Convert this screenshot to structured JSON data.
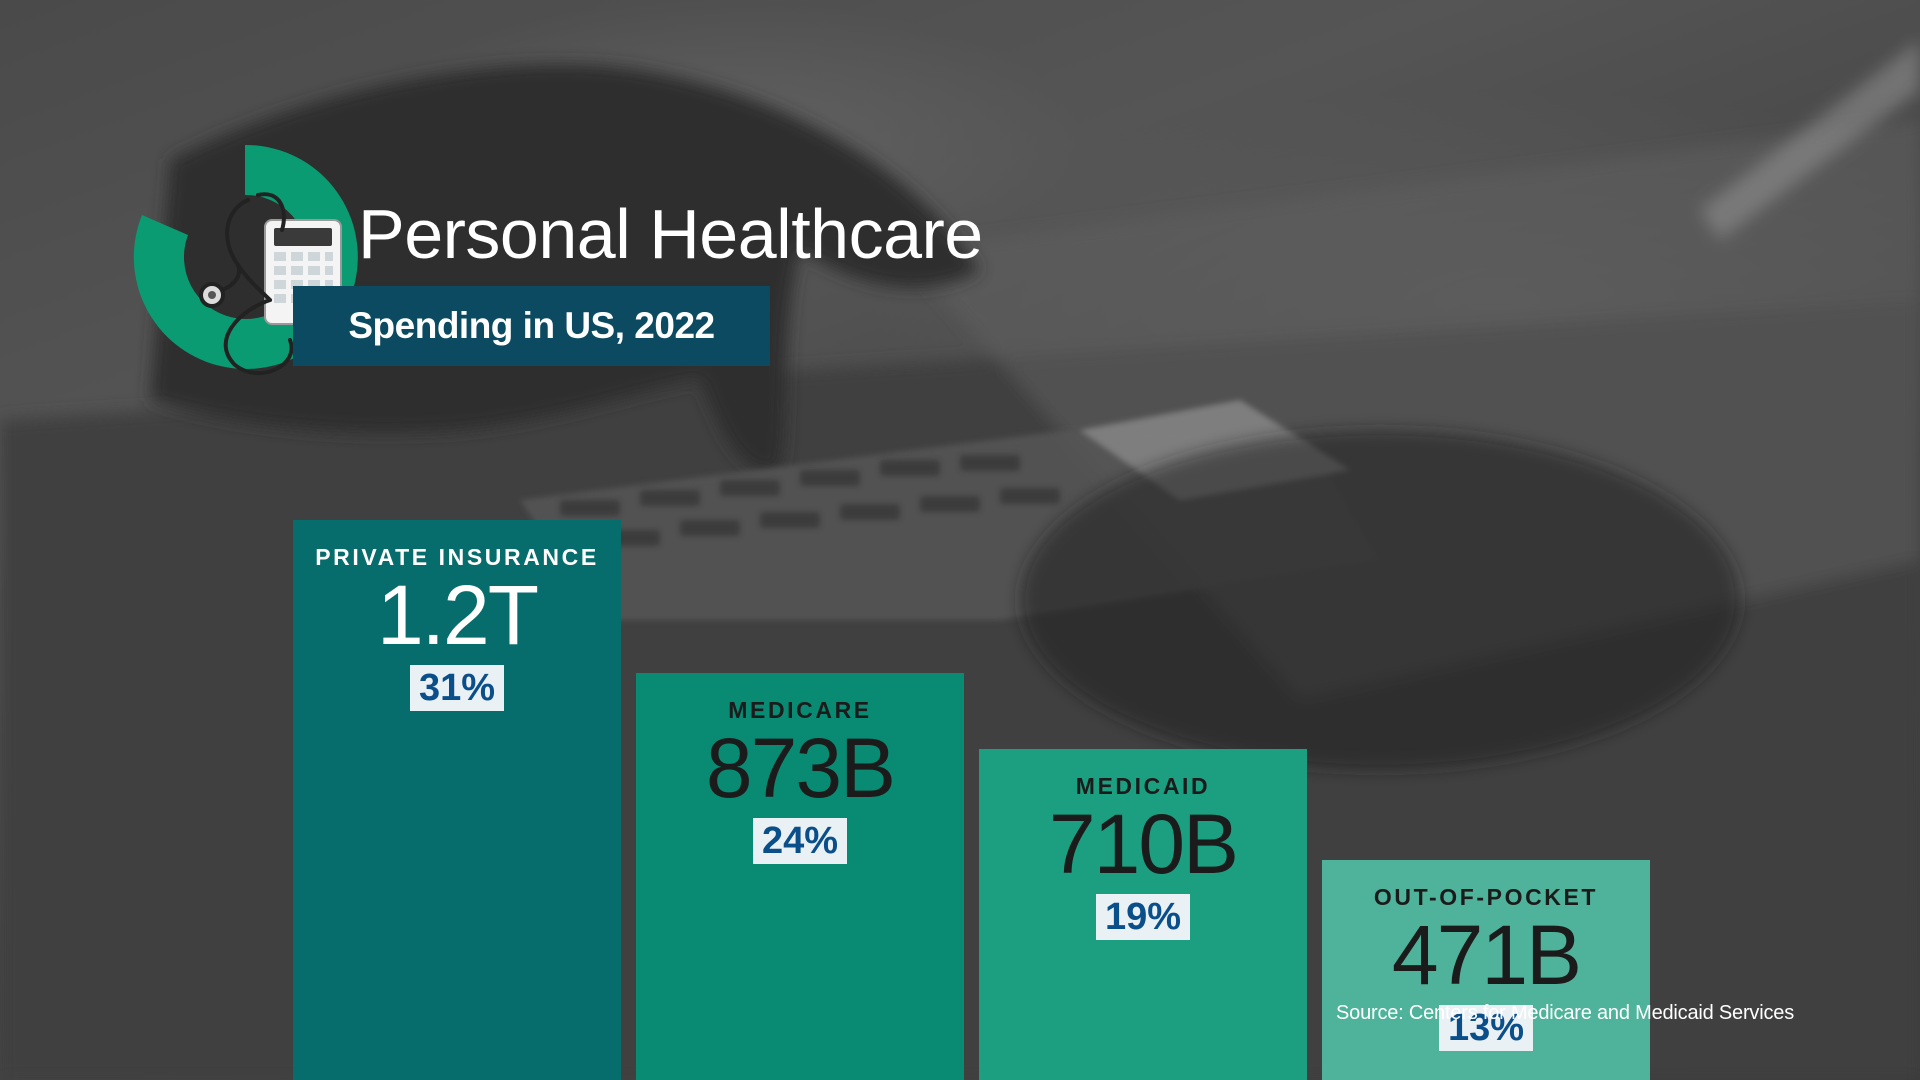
{
  "title": "Personal Healthcare",
  "subtitle": "Spending in US, 2022",
  "source": "Source: Centers for Medicare and Medicaid Services",
  "colors": {
    "accent_green": "#0a9b73",
    "subtitle_bar": "#0b4a60",
    "percent_text": "#0b4f8a",
    "percent_bg": "#eaf1f4"
  },
  "icons": [
    "stethoscope-icon",
    "calculator-icon"
  ],
  "chart_data": {
    "type": "bar",
    "title": "Personal Healthcare",
    "subtitle": "Spending in US, 2022",
    "xlabel": "",
    "ylabel": "",
    "grid": false,
    "legend": "none",
    "categories": [
      "PRIVATE INSURANCE",
      "MEDICARE",
      "MEDICAID",
      "OUT-OF-POCKET"
    ],
    "values": [
      1200,
      873,
      710,
      471
    ],
    "value_labels": [
      "1.2T",
      "873B",
      "710B",
      "471B"
    ],
    "percent_labels": [
      "31%",
      "24%",
      "19%",
      "13%"
    ],
    "unit": "USD billions",
    "bar_colors": [
      "#076c6c",
      "#088a73",
      "#1c9e80",
      "#4eb39a"
    ],
    "label_colors": [
      "#ffffff",
      "#1b1b1b",
      "#1b1b1b",
      "#1b1b1b"
    ]
  }
}
